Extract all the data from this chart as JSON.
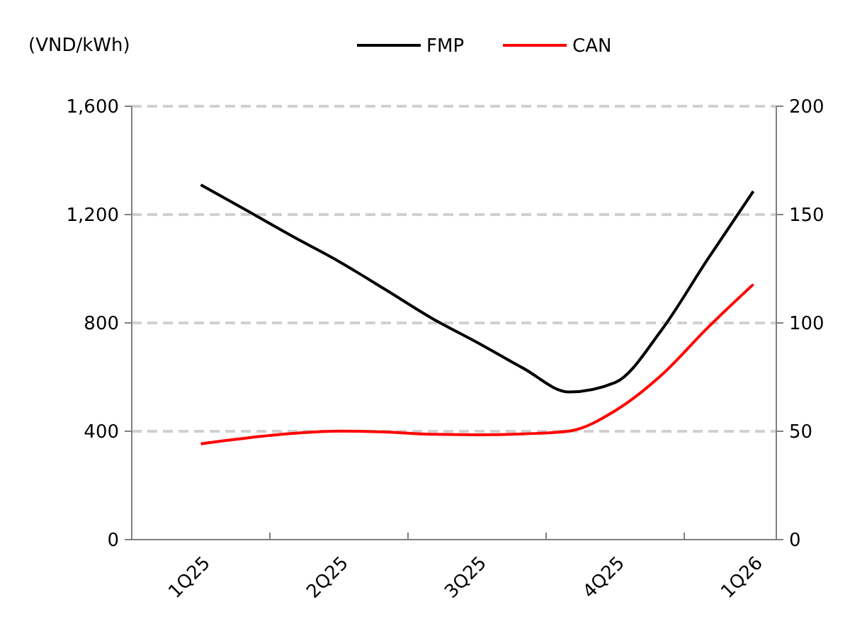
{
  "chart_data": {
    "type": "line",
    "ylabel": "(VND/kWh)",
    "categories": [
      "1Q25",
      null,
      null,
      "2Q25",
      null,
      null,
      "3Q25",
      null,
      null,
      "4Q25",
      null,
      null,
      "1Q26"
    ],
    "series": [
      {
        "name": "FMP",
        "color": "#000000",
        "values": [
          1310,
          1215,
          1119,
          1027,
          924,
          819,
          728,
          633,
          545,
          580,
          772,
          1033,
          1286
        ]
      },
      {
        "name": "CAN",
        "color": "#ff0000",
        "axis": "y2",
        "values": [
          44.2,
          46.9,
          49,
          50.1,
          49.7,
          48.6,
          48.4,
          48.8,
          50.1,
          59.5,
          75.8,
          97.6,
          117.8
        ]
      }
    ],
    "ylim": [
      0,
      1600
    ],
    "yticks": [
      {
        "value": 0,
        "label": "0"
      },
      {
        "value": 400,
        "label": "400"
      },
      {
        "value": 800,
        "label": "800"
      },
      {
        "value": 1200,
        "label": "1,200"
      },
      {
        "value": 1600,
        "label": "1,600"
      }
    ],
    "y2lim": [
      0,
      200
    ],
    "y2ticks": [
      0,
      50,
      100,
      150,
      200
    ],
    "grid": "y",
    "legend": "top",
    "marker": "none",
    "line_style": "solid"
  }
}
